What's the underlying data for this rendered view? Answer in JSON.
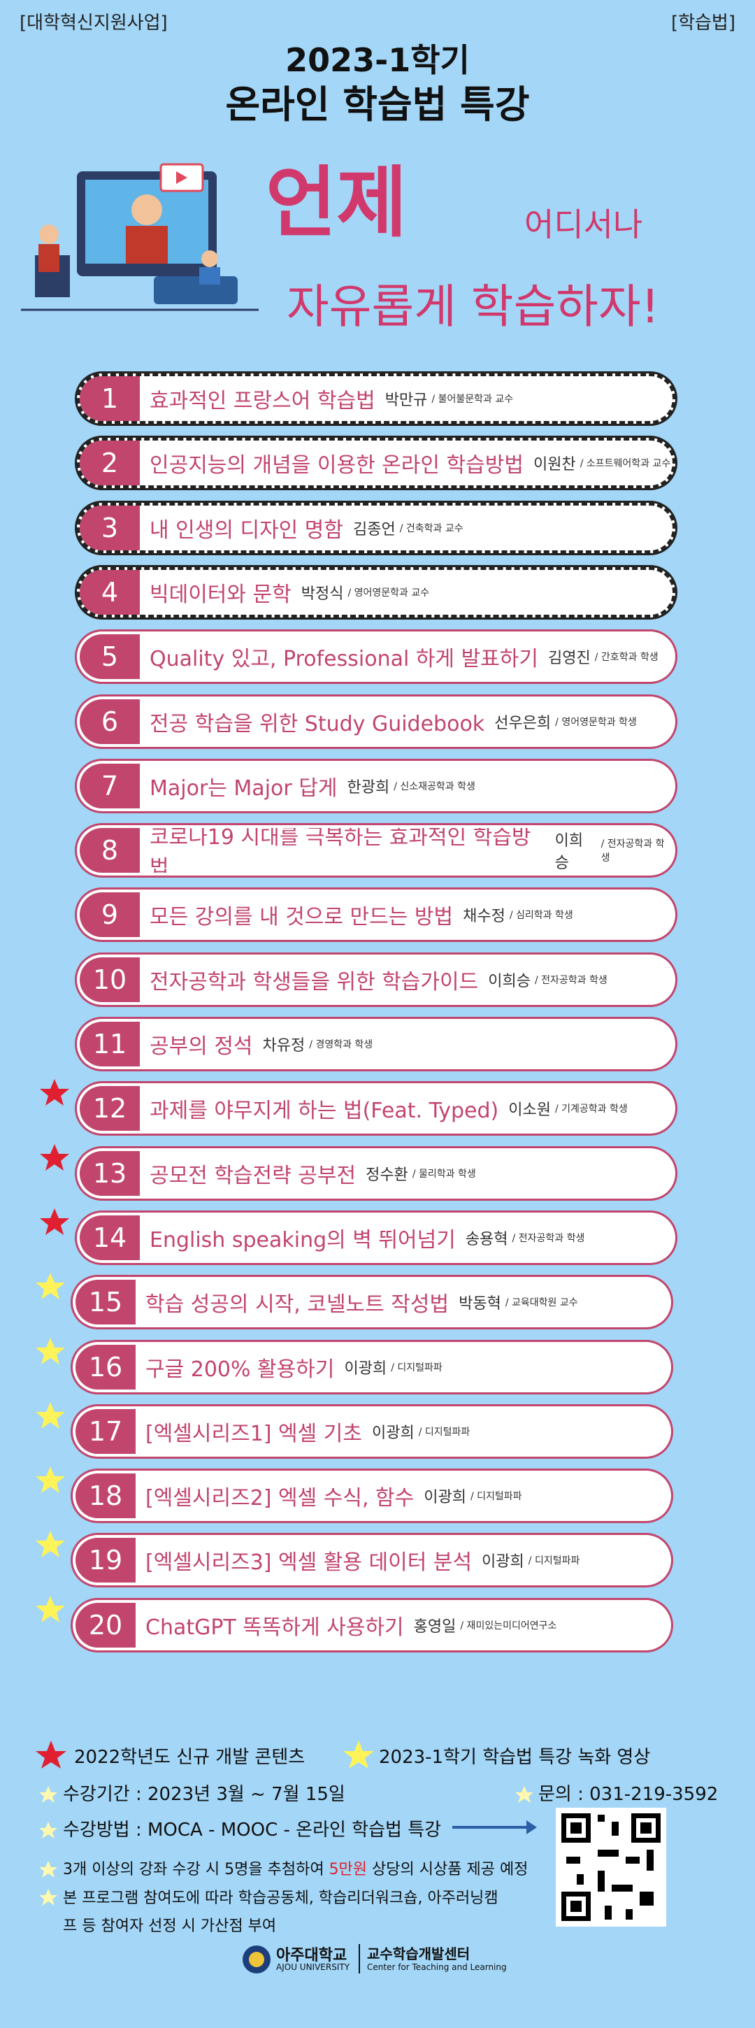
{
  "header": {
    "tag_left": "[대학혁신지원사업]",
    "tag_right": "[학습법]",
    "title_line1": "2023-1학기",
    "title_line2": "온라인 학습법 특강",
    "slogan_when": "언제",
    "slogan_where": "어디서나",
    "slogan_free": "자유롭게 학습하자!"
  },
  "lectures": [
    {
      "number": "1",
      "title": "효과적인 프랑스어 학습법",
      "speaker": "박만규",
      "affiliation": "/ 불어불문학과 교수",
      "style": "dark"
    },
    {
      "number": "2",
      "title": "인공지능의 개념을 이용한 온라인 학습방법",
      "speaker": "이원찬",
      "affiliation": "/ 소프트웨어학과 교수",
      "style": "dark"
    },
    {
      "number": "3",
      "title": "내 인생의 디자인 명함",
      "speaker": "김종언",
      "affiliation": "/ 건축학과 교수",
      "style": "dark"
    },
    {
      "number": "4",
      "title": "빅데이터와 문학",
      "speaker": "박정식",
      "affiliation": "/ 영어영문학과 교수",
      "style": "dark"
    },
    {
      "number": "5",
      "title": "Quality 있고, Professional 하게 발표하기",
      "speaker": "김영진",
      "affiliation": "/ 간호학과 학생",
      "style": "pink"
    },
    {
      "number": "6",
      "title": "전공 학습을 위한 Study Guidebook",
      "speaker": "선우은희",
      "affiliation": "/ 영어영문학과 학생",
      "style": "pink"
    },
    {
      "number": "7",
      "title": "Major는 Major 답게",
      "speaker": "한광희",
      "affiliation": "/ 신소재공학과 학생",
      "style": "pink"
    },
    {
      "number": "8",
      "title": "코로나19 시대를 극복하는 효과적인 학습방법",
      "speaker": "이희승",
      "affiliation": "/ 전자공학과 학생",
      "style": "pink"
    },
    {
      "number": "9",
      "title": "모든 강의를 내 것으로 만드는 방법",
      "speaker": "채수정",
      "affiliation": "/ 심리학과 학생",
      "style": "pink"
    },
    {
      "number": "10",
      "title": "전자공학과 학생들을 위한 학습가이드",
      "speaker": "이희승",
      "affiliation": "/ 전자공학과 학생",
      "style": "pink"
    },
    {
      "number": "11",
      "title": "공부의 정석",
      "speaker": "차유정",
      "affiliation": "/ 경영학과 학생",
      "style": "pink"
    },
    {
      "number": "12",
      "title": "과제를 야무지게 하는 법(Feat. Typed)",
      "speaker": "이소원",
      "affiliation": "/ 기계공학과 학생",
      "style": "pink",
      "star": "red"
    },
    {
      "number": "13",
      "title": "공모전 학습전략 공부전",
      "speaker": "정수환",
      "affiliation": "/ 물리학과 학생",
      "style": "pink",
      "star": "red"
    },
    {
      "number": "14",
      "title": "English speaking의 벽 뛰어넘기",
      "speaker": "송용혁",
      "affiliation": "/ 전자공학과 학생",
      "style": "pink",
      "star": "red"
    },
    {
      "number": "15",
      "title": "학습 성공의 시작, 코넬노트 작성법",
      "speaker": "박동혁",
      "affiliation": "/ 교육대학원 교수",
      "style": "pink",
      "star": "yellow"
    },
    {
      "number": "16",
      "title": "구글 200% 활용하기",
      "speaker": "이광희",
      "affiliation": "/ 디지털파파",
      "style": "pink",
      "star": "yellow"
    },
    {
      "number": "17",
      "title": "[엑셀시리즈1] 엑셀 기초",
      "speaker": "이광희",
      "affiliation": "/ 디지털파파",
      "style": "pink",
      "star": "yellow"
    },
    {
      "number": "18",
      "title": "[엑셀시리즈2] 엑셀 수식, 함수",
      "speaker": "이광희",
      "affiliation": "/ 디지털파파",
      "style": "pink",
      "star": "yellow"
    },
    {
      "number": "19",
      "title": "[엑셀시리즈3] 엑셀 활용 데이터 분석",
      "speaker": "이광희",
      "affiliation": "/ 디지털파파",
      "style": "pink",
      "star": "yellow"
    },
    {
      "number": "20",
      "title": "ChatGPT 똑똑하게 사용하기",
      "speaker": "홍영일",
      "affiliation": "/ 재미있는미디어연구소",
      "style": "pink",
      "star": "yellow"
    }
  ],
  "legend": {
    "red": "2022학년도  신규 개발 콘텐츠",
    "yellow": "2023-1학기  학습법 특강 녹화 영상"
  },
  "info": {
    "period": "수강기간 : 2023년 3월  ~ 7월 15일",
    "contact": "문의 : 031-219-3592",
    "method": "수강방법 : MOCA - MOOC - 온라인 학습법 특강",
    "note1_before": "3개 이상의 강좌 수강 시 5명을 추첨하여 ",
    "note1_highlight": "5만원",
    "note1_after": " 상당의 시상품 제공 예정",
    "note2": "본 프로그램 참여도에 따라 학습공동체, 학습리더워크숍, 아주러닝캠프 등 참여자 선정 시 가산점 부여"
  },
  "footer": {
    "university": "아주대학교",
    "university_en": "AJOU UNIVERSITY",
    "center": "교수학습개발센터",
    "center_en": "Center for Teaching and Learning"
  }
}
